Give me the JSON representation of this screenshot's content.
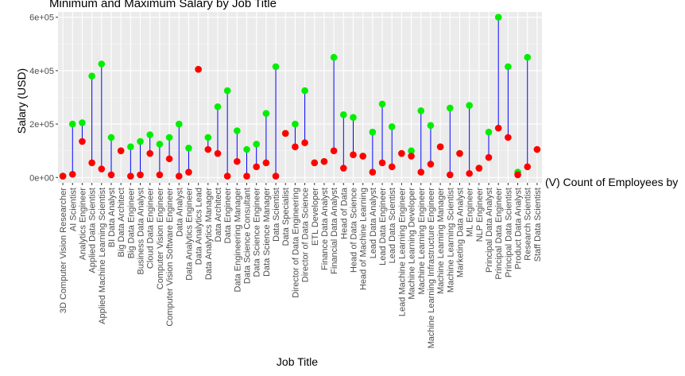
{
  "chart_data": {
    "type": "scatter",
    "title": "Minimum and Maximum Salary by Job Title",
    "xlabel": "Job Title",
    "ylabel": "Salary (USD)",
    "ylim": [
      -20000,
      620000
    ],
    "y_ticks": [
      0,
      200000,
      400000,
      600000
    ],
    "y_tick_labels": [
      "0e+00",
      "2e+05",
      "4e+05",
      "6e+05"
    ],
    "grid": true,
    "colors": {
      "panel": "#ebebeb",
      "grid_major": "#ffffff",
      "grid_minor": "#f5f5f5",
      "min": "#ff0000",
      "max": "#00ee00",
      "segment": "#0000ff"
    },
    "categories": [
      "3D Computer Vision Researcher",
      "AI Scientist",
      "Analytics Engineer",
      "Applied Data Scientist",
      "Applied Machine Learning Scientist",
      "BI Data Analyst",
      "Big Data Architect",
      "Big Data Engineer",
      "Business Data Analyst",
      "Cloud Data Engineer",
      "Computer Vision Engineer",
      "Computer Vision Software Engineer",
      "Data Analyst",
      "Data Analytics Engineer",
      "Data Analytics Lead",
      "Data Analytics Manager",
      "Data Architect",
      "Data Engineer",
      "Data Engineering Manager",
      "Data Science Consultant",
      "Data Science Engineer",
      "Data Science Manager",
      "Data Scientist",
      "Data Specialist",
      "Director of Data Engineering",
      "Director of Data Science",
      "ETL Developer",
      "Finance Data Analyst",
      "Financial Data Analyst",
      "Head of Data",
      "Head of Data Science",
      "Head of Machine Learning",
      "Lead Data Analyst",
      "Lead Data Engineer",
      "Lead Data Scientist",
      "Lead Machine Learning Engineer",
      "Machine Learning Developer",
      "Machine Learning Engineer",
      "Machine Learning Infrastructure Engineer",
      "Machine Learning Manager",
      "Machine Learning Scientist",
      "Marketing Data Analyst",
      "ML Engineer",
      "NLP Engineer",
      "Principal Data Analyst",
      "Principal Data Engineer",
      "Principal Data Scientist",
      "Product Data Analyst",
      "Research Scientist",
      "Staff Data Scientist"
    ],
    "series": [
      {
        "name": "min",
        "values": [
          5000,
          12000,
          135000,
          55000,
          32000,
          10000,
          100000,
          5000,
          10000,
          90000,
          10000,
          70000,
          5000,
          20000,
          405000,
          105000,
          90000,
          5000,
          60000,
          5000,
          40000,
          55000,
          5000,
          165000,
          115000,
          130000,
          55000,
          60000,
          100000,
          35000,
          85000,
          80000,
          20000,
          55000,
          40000,
          90000,
          80000,
          20000,
          50000,
          115000,
          10000,
          90000,
          15000,
          35000,
          75000,
          185000,
          150000,
          10000,
          40000,
          105000
        ]
      },
      {
        "name": "max",
        "values": [
          5000,
          200000,
          205000,
          380000,
          425000,
          150000,
          100000,
          115000,
          135000,
          160000,
          125000,
          150000,
          200000,
          110000,
          405000,
          150000,
          265000,
          325000,
          175000,
          105000,
          125000,
          240000,
          415000,
          165000,
          200000,
          325000,
          55000,
          60000,
          450000,
          235000,
          225000,
          80000,
          170000,
          275000,
          190000,
          90000,
          100000,
          250000,
          195000,
          115000,
          260000,
          90000,
          270000,
          35000,
          170000,
          600000,
          415000,
          20000,
          450000,
          105000
        ]
      }
    ]
  },
  "side_note": "(V) Count of Employees by"
}
